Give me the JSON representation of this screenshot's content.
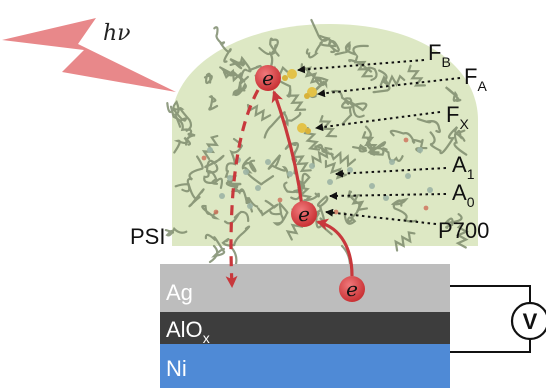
{
  "light": {
    "label": "hν",
    "color": "#e8888a"
  },
  "protein": {
    "label": "PSI",
    "shape_color": "#dde8c4",
    "ribbon_color": "#7e8c6e"
  },
  "cofactors": [
    {
      "id": "fb",
      "main": "F",
      "sub": "B"
    },
    {
      "id": "fa",
      "main": "F",
      "sub": "A"
    },
    {
      "id": "fx",
      "main": "F",
      "sub": "X"
    },
    {
      "id": "a1",
      "main": "A",
      "sub": "1"
    },
    {
      "id": "a0",
      "main": "A",
      "sub": "0"
    },
    {
      "id": "p700",
      "main": "P700",
      "sub": ""
    }
  ],
  "electron": {
    "label": "e",
    "color": "#d9474a"
  },
  "layers": [
    {
      "id": "ag",
      "main": "Ag",
      "sub": "",
      "color": "#bdbdbd"
    },
    {
      "id": "alox",
      "main": "AlO",
      "sub": "x",
      "color": "#3d3d3d"
    },
    {
      "id": "ni",
      "main": "Ni",
      "sub": "",
      "color": "#4f8ad6"
    }
  ],
  "voltmeter": {
    "label": "V"
  },
  "arrow_color": "#c8383c"
}
